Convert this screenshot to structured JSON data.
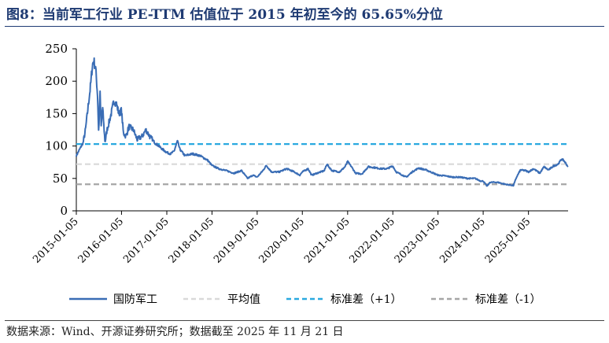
{
  "figure": {
    "title": "图8：当前军工行业 PE-TTM 估值位于 2015 年初至今的 65.65%分位",
    "source": "数据来源：Wind、开源证券研究所；数据截至 2025 年 11 月 21 日"
  },
  "colors": {
    "title": "#1f3b73",
    "series_main": "#3a6db5",
    "mean": "#d9d9d9",
    "plus1": "#2aa9e0",
    "minus1": "#a6a6a6"
  },
  "chart_data": {
    "type": "line",
    "title": "",
    "xlabel": "",
    "ylabel": "",
    "ylim": [
      0,
      250
    ],
    "yticks": [
      "0",
      "50",
      "100",
      "150",
      "200",
      "250"
    ],
    "xticks": [
      "2015-01-05",
      "2016-01-05",
      "2017-01-05",
      "2018-01-05",
      "2019-01-05",
      "2020-01-05",
      "2021-01-05",
      "2022-01-05",
      "2023-01-05",
      "2024-01-05",
      "2025-01-05"
    ],
    "xrange": [
      "2015-01-05",
      "2025-11-21"
    ],
    "grid": false,
    "legend_position": "bottom",
    "series": [
      {
        "name": "国防军工",
        "style": "solid",
        "points": [
          [
            "2015-01-05",
            85
          ],
          [
            "2015-02-01",
            95
          ],
          [
            "2015-03-01",
            105
          ],
          [
            "2015-03-20",
            125
          ],
          [
            "2015-04-10",
            160
          ],
          [
            "2015-05-01",
            195
          ],
          [
            "2015-05-15",
            225
          ],
          [
            "2015-05-25",
            232
          ],
          [
            "2015-06-10",
            220
          ],
          [
            "2015-06-25",
            180
          ],
          [
            "2015-07-05",
            120
          ],
          [
            "2015-07-15",
            185
          ],
          [
            "2015-07-25",
            130
          ],
          [
            "2015-08-05",
            160
          ],
          [
            "2015-08-25",
            105
          ],
          [
            "2015-09-10",
            125
          ],
          [
            "2015-10-01",
            140
          ],
          [
            "2015-10-20",
            155
          ],
          [
            "2015-11-05",
            170
          ],
          [
            "2015-11-25",
            165
          ],
          [
            "2015-12-15",
            150
          ],
          [
            "2016-01-05",
            155
          ],
          [
            "2016-01-20",
            120
          ],
          [
            "2016-02-10",
            115
          ],
          [
            "2016-03-05",
            130
          ],
          [
            "2016-04-10",
            125
          ],
          [
            "2016-05-10",
            110
          ],
          [
            "2016-06-20",
            115
          ],
          [
            "2016-07-20",
            125
          ],
          [
            "2016-08-20",
            115
          ],
          [
            "2016-10-01",
            105
          ],
          [
            "2016-11-01",
            100
          ],
          [
            "2016-12-01",
            95
          ],
          [
            "2017-01-05",
            90
          ],
          [
            "2017-02-05",
            88
          ],
          [
            "2017-03-05",
            92
          ],
          [
            "2017-04-01",
            108
          ],
          [
            "2017-04-20",
            95
          ],
          [
            "2017-06-01",
            85
          ],
          [
            "2017-08-01",
            88
          ],
          [
            "2017-10-01",
            85
          ],
          [
            "2017-12-01",
            78
          ],
          [
            "2018-01-05",
            70
          ],
          [
            "2018-03-01",
            65
          ],
          [
            "2018-05-01",
            62
          ],
          [
            "2018-07-01",
            58
          ],
          [
            "2018-09-01",
            62
          ],
          [
            "2018-10-20",
            50
          ],
          [
            "2018-12-01",
            55
          ],
          [
            "2019-01-05",
            52
          ],
          [
            "2019-02-20",
            62
          ],
          [
            "2019-03-20",
            70
          ],
          [
            "2019-05-01",
            60
          ],
          [
            "2019-07-01",
            60
          ],
          [
            "2019-09-01",
            65
          ],
          [
            "2019-11-01",
            60
          ],
          [
            "2019-12-15",
            55
          ],
          [
            "2020-01-05",
            60
          ],
          [
            "2020-02-20",
            65
          ],
          [
            "2020-03-20",
            55
          ],
          [
            "2020-05-01",
            58
          ],
          [
            "2020-07-01",
            62
          ],
          [
            "2020-07-20",
            72
          ],
          [
            "2020-09-01",
            62
          ],
          [
            "2020-11-01",
            60
          ],
          [
            "2020-12-15",
            68
          ],
          [
            "2021-01-05",
            76
          ],
          [
            "2021-02-05",
            68
          ],
          [
            "2021-03-10",
            58
          ],
          [
            "2021-05-01",
            57
          ],
          [
            "2021-06-20",
            68
          ],
          [
            "2021-08-01",
            67
          ],
          [
            "2021-10-01",
            65
          ],
          [
            "2021-11-20",
            65
          ],
          [
            "2022-01-05",
            69
          ],
          [
            "2022-02-01",
            60
          ],
          [
            "2022-04-25",
            52
          ],
          [
            "2022-06-10",
            60
          ],
          [
            "2022-08-01",
            66
          ],
          [
            "2022-10-01",
            63
          ],
          [
            "2022-12-01",
            58
          ],
          [
            "2023-01-05",
            55
          ],
          [
            "2023-03-01",
            54
          ],
          [
            "2023-05-01",
            52
          ],
          [
            "2023-07-01",
            52
          ],
          [
            "2023-09-01",
            50
          ],
          [
            "2023-11-01",
            50
          ],
          [
            "2023-12-15",
            46
          ],
          [
            "2024-01-05",
            46
          ],
          [
            "2024-02-05",
            38
          ],
          [
            "2024-03-01",
            44
          ],
          [
            "2024-05-01",
            44
          ],
          [
            "2024-07-01",
            41
          ],
          [
            "2024-09-05",
            39
          ],
          [
            "2024-10-01",
            52
          ],
          [
            "2024-11-01",
            63
          ],
          [
            "2024-12-15",
            62
          ],
          [
            "2025-01-05",
            60
          ],
          [
            "2025-02-15",
            65
          ],
          [
            "2025-04-07",
            58
          ],
          [
            "2025-05-10",
            68
          ],
          [
            "2025-06-15",
            63
          ],
          [
            "2025-07-25",
            69
          ],
          [
            "2025-09-01",
            72
          ],
          [
            "2025-10-01",
            80
          ],
          [
            "2025-10-20",
            77
          ],
          [
            "2025-11-21",
            68
          ]
        ]
      },
      {
        "name": "平均值",
        "style": "dashed",
        "value": 72
      },
      {
        "name": "标准差（+1）",
        "style": "dashed",
        "value": 103
      },
      {
        "name": "标准差（-1）",
        "style": "dashed",
        "value": 41
      }
    ]
  }
}
